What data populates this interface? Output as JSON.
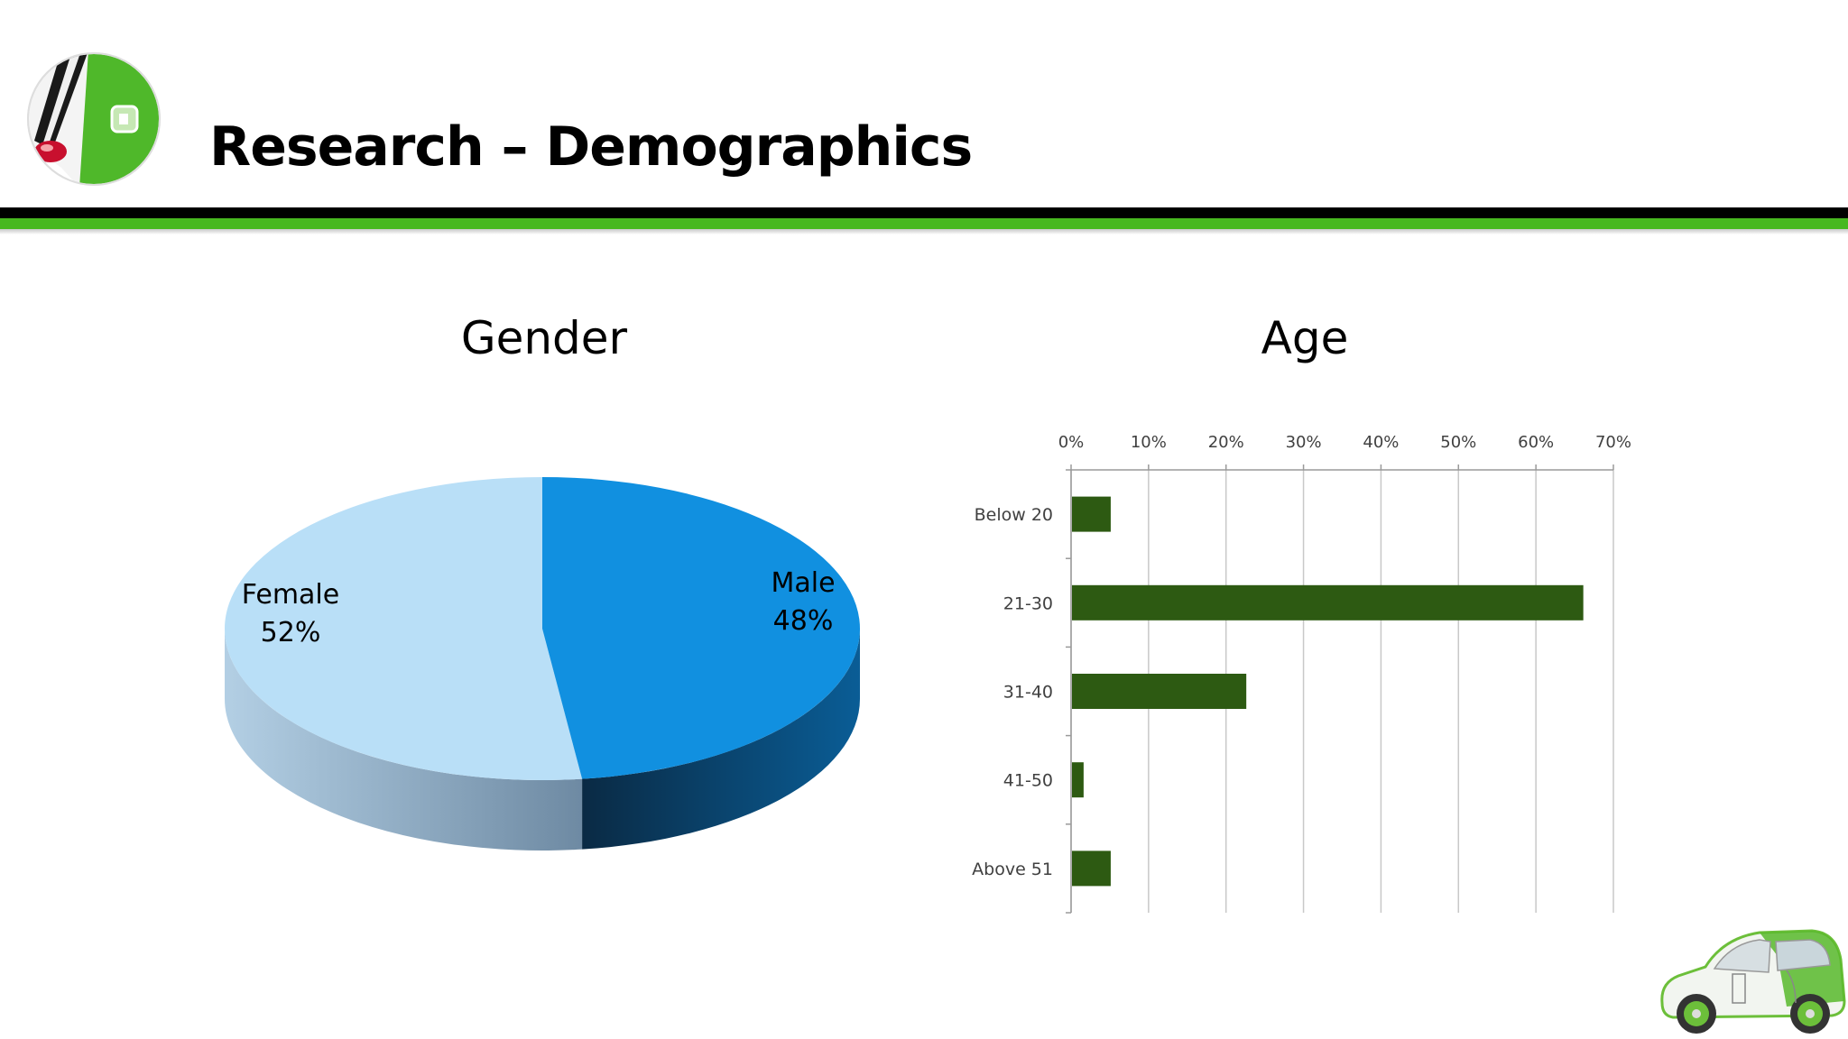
{
  "slide": {
    "title": "Research – Demographics"
  },
  "colors": {
    "accent_green": "#47b81f",
    "rule_black": "#000000",
    "female": "#b9dff7",
    "male": "#1190e0",
    "bar": "#2d5a12"
  },
  "icons": {
    "logo": "ev-plug-logo-icon",
    "car": "electric-car-illustration-icon"
  },
  "chart_data": [
    {
      "type": "pie",
      "title": "Gender",
      "slices": [
        {
          "name": "Female",
          "value": 52,
          "label": "52%"
        },
        {
          "name": "Male",
          "value": 48,
          "label": "48%"
        }
      ],
      "style": "3d"
    },
    {
      "type": "bar",
      "orientation": "horizontal",
      "title": "Age",
      "categories": [
        "Below 20",
        "21-30",
        "31-40",
        "41-50",
        "Above 51"
      ],
      "values": [
        5,
        66,
        22.5,
        1.5,
        5
      ],
      "xlim": [
        0,
        70
      ],
      "xticks": [
        "0%",
        "10%",
        "20%",
        "30%",
        "40%",
        "50%",
        "60%",
        "70%"
      ],
      "grid": true,
      "axis_position": "top"
    }
  ]
}
